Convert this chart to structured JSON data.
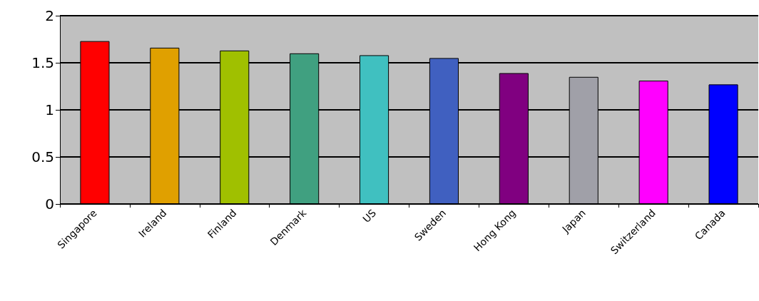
{
  "chart_data": {
    "type": "bar",
    "categories": [
      "Singapore",
      "Ireland",
      "Finland",
      "Denmark",
      "US",
      "Sweden",
      "Hong Kong",
      "Japan",
      "Switzerland",
      "Canada"
    ],
    "values": [
      1.73,
      1.66,
      1.63,
      1.6,
      1.58,
      1.55,
      1.39,
      1.35,
      1.31,
      1.27
    ],
    "colors": [
      "#ff0000",
      "#e0a000",
      "#a0c000",
      "#40a080",
      "#40c0c0",
      "#4060c0",
      "#800080",
      "#a0a0a8",
      "#ff00ff",
      "#0000ff"
    ],
    "ylim": [
      0,
      2
    ],
    "yticks": [
      0,
      0.5,
      1,
      1.5,
      2
    ],
    "grid": "y"
  }
}
